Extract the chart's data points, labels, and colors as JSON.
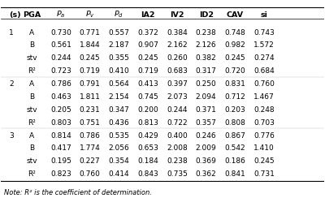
{
  "headers": [
    "(s)",
    "PGA",
    "P_a",
    "P_v",
    "P_d",
    "IA2",
    "IV2",
    "ID2",
    "CAV",
    "si"
  ],
  "header_labels": [
    "(s)",
    "PGA",
    "P$_a$",
    "P$_v$",
    "P$_d$",
    "IA2",
    "IV2",
    "ID2",
    "CAV",
    "si"
  ],
  "rows": [
    [
      "1",
      "A",
      "0.730",
      "0.771",
      "0.557",
      "0.372",
      "0.384",
      "0.238",
      "0.748",
      "0.743"
    ],
    [
      "",
      "B",
      "0.561",
      "1.844",
      "2.187",
      "0.907",
      "2.162",
      "2.126",
      "0.982",
      "1.572"
    ],
    [
      "",
      "stv",
      "0.244",
      "0.245",
      "0.355",
      "0.245",
      "0.260",
      "0.382",
      "0.245",
      "0.274"
    ],
    [
      "",
      "R²",
      "0.723",
      "0.719",
      "0.410",
      "0.719",
      "0.683",
      "0.317",
      "0.720",
      "0.684"
    ],
    [
      "2",
      "A",
      "0.786",
      "0.791",
      "0.564",
      "0.413",
      "0.397",
      "0.250",
      "0.831",
      "0.760"
    ],
    [
      "",
      "B",
      "0.463",
      "1.811",
      "2.154",
      "0.745",
      "2.073",
      "2.094",
      "0.712",
      "1.467"
    ],
    [
      "",
      "stv",
      "0.205",
      "0.231",
      "0.347",
      "0.200",
      "0.244",
      "0.371",
      "0.203",
      "0.248"
    ],
    [
      "",
      "R²",
      "0.803",
      "0.751",
      "0.436",
      "0.813",
      "0.722",
      "0.357",
      "0.808",
      "0.703"
    ],
    [
      "3",
      "A",
      "0.814",
      "0.786",
      "0.535",
      "0.429",
      "0.400",
      "0.246",
      "0.867",
      "0.776"
    ],
    [
      "",
      "B",
      "0.417",
      "1.774",
      "2.056",
      "0.653",
      "2.008",
      "2.009",
      "0.542",
      "1.410"
    ],
    [
      "",
      "stv",
      "0.195",
      "0.227",
      "0.354",
      "0.184",
      "0.238",
      "0.369",
      "0.186",
      "0.245"
    ],
    [
      "",
      "R²",
      "0.823",
      "0.760",
      "0.414",
      "0.843",
      "0.735",
      "0.362",
      "0.841",
      "0.731"
    ]
  ],
  "note": "Note: R² is the coefficient of determination.",
  "bg_color": "#ffffff",
  "text_color": "#000000",
  "font_size": 6.5,
  "header_font_size": 6.8,
  "note_font_size": 6.0
}
